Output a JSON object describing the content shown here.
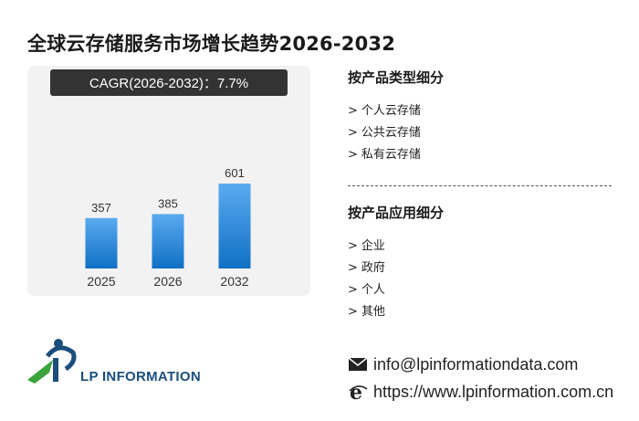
{
  "title": "全球云存储服务市场增长趋势2026-2032",
  "cagr_label": "CAGR(2026-2032)：7.7%",
  "colors": {
    "bar_top": "#5aaaf0",
    "bar_bottom": "#1170c4",
    "panel_bg": "#f2f2f2",
    "cagr_bg": "#333333",
    "logo_blue": "#1b4e7c",
    "logo_green": "#3aa33a"
  },
  "chart_data": {
    "type": "bar",
    "categories": [
      "2025",
      "2026",
      "2032"
    ],
    "values": [
      357,
      385,
      601
    ],
    "title": "",
    "xlabel": "",
    "ylabel": "",
    "ylim": [
      0,
      601
    ]
  },
  "sections": [
    {
      "title": "按产品类型细分",
      "items": [
        "个人云存储",
        "公共云存储",
        "私有云存储"
      ]
    },
    {
      "title": "按产品应用细分",
      "items": [
        "企业",
        "政府",
        "个人",
        "其他"
      ]
    }
  ],
  "item_prefix": ">",
  "contact": {
    "email": "info@lpinformationdata.com",
    "email_icon": "envelope-icon",
    "website": "https://www.lpinformation.com.cn",
    "website_icon": "browser-e-icon"
  },
  "logo": {
    "text": "LP INFORMATION",
    "icon": "lp-logo-icon"
  }
}
